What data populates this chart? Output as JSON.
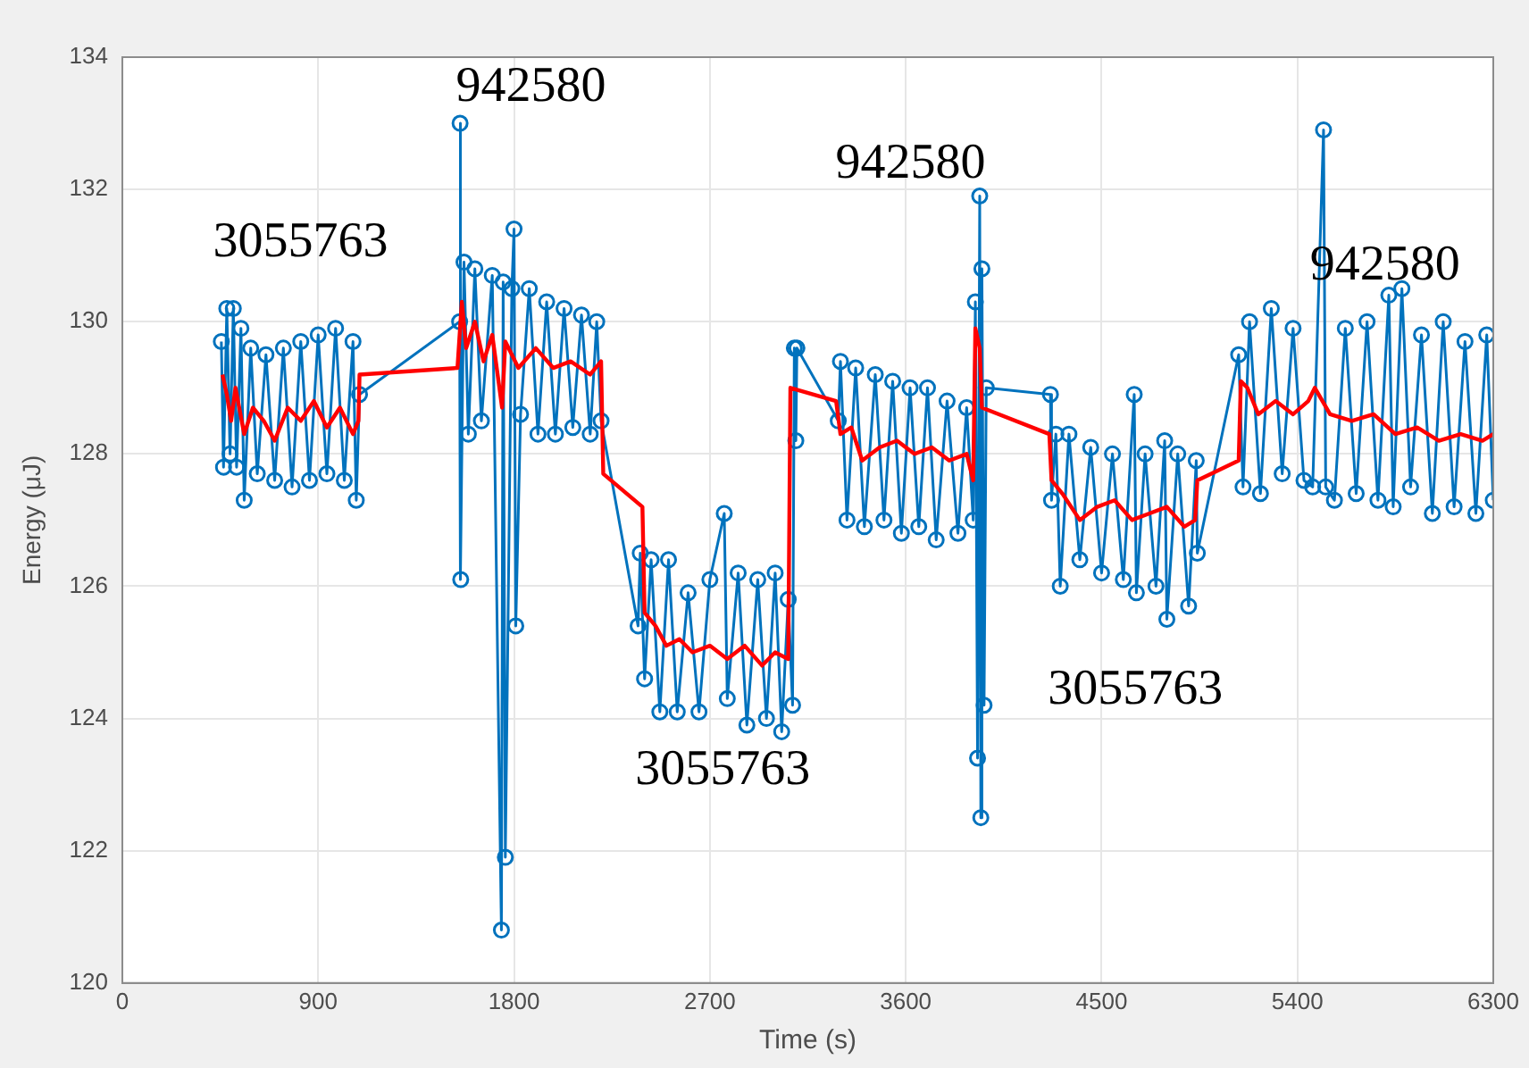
{
  "chart_data": {
    "type": "line",
    "xlabel": "Time (s)",
    "ylabel": "Energy (μJ)",
    "xlim": [
      0,
      6300
    ],
    "xticks": [
      0,
      900,
      1800,
      2700,
      3600,
      4500,
      5400,
      6300
    ],
    "ylim": [
      120,
      134
    ],
    "yticks": [
      120,
      122,
      124,
      126,
      128,
      130,
      132,
      134
    ],
    "grid": true,
    "legend": false,
    "line_style": "solid",
    "series": [
      {
        "color": "#0072bd",
        "marker": "circle",
        "x": [
          455,
          465,
          480,
          495,
          510,
          525,
          545,
          560,
          590,
          620,
          660,
          700,
          740,
          780,
          820,
          860,
          900,
          940,
          980,
          1020,
          1060,
          1075,
          1090,
          1550,
          1552,
          1555,
          1570,
          1590,
          1620,
          1650,
          1700,
          1742,
          1750,
          1760,
          1790,
          1800,
          1808,
          1830,
          1870,
          1910,
          1950,
          1990,
          2030,
          2070,
          2110,
          2150,
          2180,
          2200,
          2370,
          2380,
          2400,
          2430,
          2470,
          2510,
          2550,
          2600,
          2650,
          2700,
          2766,
          2780,
          2830,
          2870,
          2920,
          2960,
          3000,
          3030,
          3060,
          3080,
          3088,
          3095,
          3100,
          3290,
          3300,
          3330,
          3370,
          3410,
          3460,
          3500,
          3540,
          3580,
          3620,
          3660,
          3700,
          3740,
          3790,
          3840,
          3880,
          3910,
          3920,
          3930,
          3940,
          3945,
          3950,
          3960,
          3970,
          4265,
          4270,
          4290,
          4310,
          4350,
          4400,
          4450,
          4500,
          4550,
          4600,
          4650,
          4660,
          4700,
          4750,
          4790,
          4800,
          4850,
          4900,
          4935,
          4940,
          5130,
          5150,
          5180,
          5230,
          5280,
          5330,
          5380,
          5430,
          5470,
          5520,
          5530,
          5570,
          5620,
          5670,
          5720,
          5770,
          5820,
          5840,
          5880,
          5920,
          5970,
          6020,
          6070,
          6120,
          6170,
          6220,
          6270,
          6300
        ],
        "values": [
          129.7,
          127.8,
          130.2,
          128.0,
          130.2,
          127.8,
          129.9,
          127.3,
          129.6,
          127.7,
          129.5,
          127.6,
          129.6,
          127.5,
          129.7,
          127.6,
          129.8,
          127.7,
          129.9,
          127.6,
          129.7,
          127.3,
          128.9,
          130.0,
          133.0,
          126.1,
          130.9,
          128.3,
          130.8,
          128.5,
          130.7,
          120.8,
          130.6,
          121.9,
          130.5,
          131.4,
          125.4,
          128.6,
          130.5,
          128.3,
          130.3,
          128.3,
          130.2,
          128.4,
          130.1,
          128.3,
          130.0,
          128.5,
          125.4,
          126.5,
          124.6,
          126.4,
          124.1,
          126.4,
          124.1,
          125.9,
          124.1,
          126.1,
          127.1,
          124.3,
          126.2,
          123.9,
          126.1,
          124.0,
          126.2,
          123.8,
          125.8,
          124.2,
          129.6,
          128.2,
          129.6,
          128.5,
          129.4,
          127.0,
          129.3,
          126.9,
          129.2,
          127.0,
          129.1,
          126.8,
          129.0,
          126.9,
          129.0,
          126.7,
          128.8,
          126.8,
          128.7,
          127.0,
          130.3,
          123.4,
          131.9,
          122.5,
          130.8,
          124.2,
          129.0,
          128.9,
          127.3,
          128.3,
          126.0,
          128.3,
          126.4,
          128.1,
          126.2,
          128.0,
          126.1,
          128.9,
          125.9,
          128.0,
          126.0,
          128.2,
          125.5,
          128.0,
          125.7,
          127.9,
          126.5,
          129.5,
          127.5,
          130.0,
          127.4,
          130.2,
          127.7,
          129.9,
          127.6,
          127.5,
          132.9,
          127.5,
          127.3,
          129.9,
          127.4,
          130.0,
          127.3,
          130.4,
          127.2,
          130.5,
          127.5,
          129.8,
          127.1,
          130.0,
          127.2,
          129.7,
          127.1,
          129.8,
          127.3
        ]
      },
      {
        "color": "#ff0000",
        "marker": "none",
        "x": [
          460,
          480,
          500,
          520,
          560,
          600,
          650,
          700,
          760,
          820,
          880,
          940,
          1000,
          1060,
          1085,
          1090,
          1540,
          1560,
          1580,
          1620,
          1660,
          1700,
          1745,
          1760,
          1820,
          1900,
          1980,
          2060,
          2150,
          2200,
          2210,
          2390,
          2400,
          2450,
          2500,
          2560,
          2620,
          2700,
          2780,
          2860,
          2940,
          3000,
          3060,
          3070,
          3280,
          3300,
          3350,
          3400,
          3480,
          3560,
          3640,
          3720,
          3800,
          3880,
          3910,
          3920,
          3940,
          3950,
          4260,
          4270,
          4320,
          4400,
          4480,
          4560,
          4640,
          4720,
          4800,
          4880,
          4930,
          4940,
          5130,
          5140,
          5170,
          5220,
          5300,
          5380,
          5450,
          5480,
          5550,
          5650,
          5750,
          5850,
          5950,
          6050,
          6150,
          6250,
          6300
        ],
        "values": [
          129.2,
          128.9,
          128.5,
          129.0,
          128.3,
          128.7,
          128.5,
          128.2,
          128.7,
          128.5,
          128.8,
          128.4,
          128.7,
          128.3,
          128.5,
          129.2,
          129.3,
          130.3,
          129.6,
          130.0,
          129.4,
          129.8,
          128.7,
          129.7,
          129.3,
          129.6,
          129.3,
          129.4,
          129.2,
          129.4,
          127.7,
          127.2,
          125.6,
          125.4,
          125.1,
          125.2,
          125.0,
          125.1,
          124.9,
          125.1,
          124.8,
          125.0,
          124.9,
          129.0,
          128.8,
          128.3,
          128.4,
          127.9,
          128.1,
          128.2,
          128.0,
          128.1,
          127.9,
          128.0,
          127.6,
          129.9,
          129.6,
          128.7,
          128.3,
          127.6,
          127.4,
          127.0,
          127.2,
          127.3,
          127.0,
          127.1,
          127.2,
          126.9,
          127.0,
          127.6,
          127.9,
          129.1,
          129.0,
          128.6,
          128.8,
          128.6,
          128.8,
          129.0,
          128.6,
          128.5,
          128.6,
          128.3,
          128.4,
          128.2,
          128.3,
          128.2,
          128.3
        ]
      }
    ],
    "annotations": [
      "3055763",
      "942580",
      "3055763",
      "942580",
      "3055763",
      "942580"
    ]
  }
}
